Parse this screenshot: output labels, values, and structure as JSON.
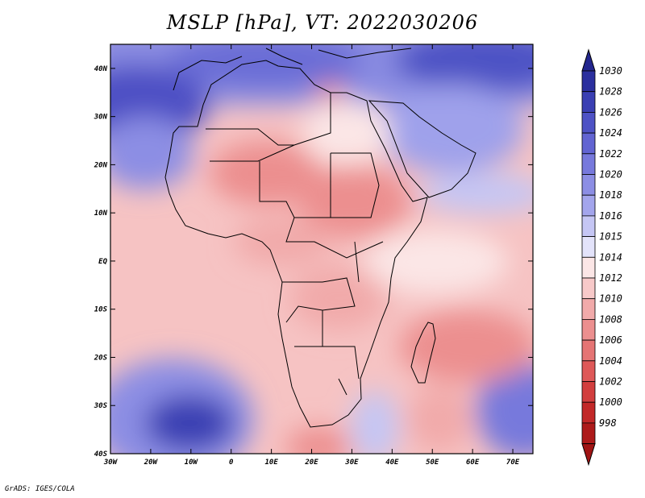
{
  "map": {
    "title": "MSLP [hPa], VT: 2022030206",
    "credit": "GrADS: IGES/COLA",
    "lon_labels": [
      "30W",
      "20W",
      "10W",
      "0",
      "10E",
      "20E",
      "30E",
      "40E",
      "50E",
      "60E",
      "70E"
    ],
    "lon_values": [
      -30,
      -20,
      -10,
      0,
      10,
      20,
      30,
      40,
      50,
      60,
      70
    ],
    "lat_labels": [
      "40N",
      "30N",
      "20N",
      "10N",
      "EQ",
      "10S",
      "20S",
      "30S",
      "40S"
    ],
    "lat_values": [
      40,
      30,
      20,
      10,
      0,
      -10,
      -20,
      -30,
      -40
    ],
    "lon_range": [
      -30,
      75
    ],
    "lat_range": [
      -40,
      45
    ]
  },
  "colorbar": {
    "levels": [
      "1030",
      "1028",
      "1026",
      "1024",
      "1022",
      "1020",
      "1018",
      "1016",
      "1015",
      "1014",
      "1012",
      "1010",
      "1008",
      "1006",
      "1004",
      "1002",
      "1000",
      "998"
    ],
    "colors": [
      "#2b2f9e",
      "#3a3fb3",
      "#4e52c5",
      "#6264d2",
      "#7779dc",
      "#8c8ee4",
      "#a3a5ec",
      "#c5c6f4",
      "#e3e3fa",
      "#fbe6e6",
      "#f7c9c9",
      "#f1aaaa",
      "#ec8f8f",
      "#e57474",
      "#de5858",
      "#d23e3e",
      "#c22828",
      "#ad1a1a"
    ],
    "top_arrow_color": "#23268e",
    "bottom_arrow_color": "#a01414"
  }
}
